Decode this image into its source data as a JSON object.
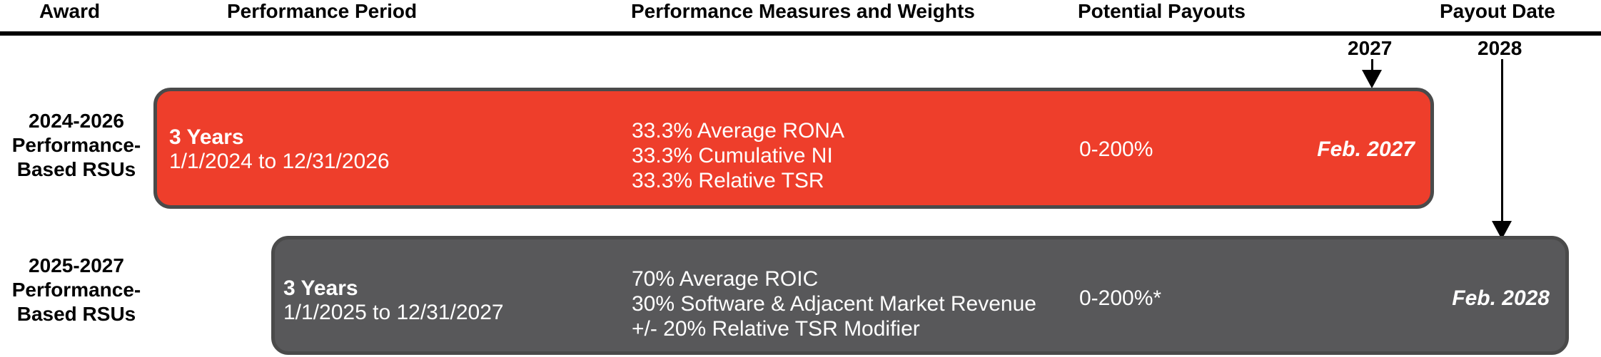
{
  "header": {
    "award": "Award",
    "performance_period": "Performance Period",
    "measures": "Performance Measures and Weights",
    "payouts": "Potential Payouts",
    "payout_date": "Payout Date"
  },
  "markers": [
    {
      "year": "2027"
    },
    {
      "year": "2028"
    }
  ],
  "rows": [
    {
      "award_lines": [
        "2024-2026",
        "Performance-",
        "Based RSUs"
      ],
      "duration": "3 Years",
      "dates": "1/1/2024 to 12/31/2026",
      "measures": [
        "33.3% Average RONA",
        "33.3% Cumulative NI",
        "33.3% Relative TSR"
      ],
      "payout": "0-200%",
      "payout_date": "Feb. 2027",
      "color": "#ee3e2b"
    },
    {
      "award_lines": [
        "2025-2027",
        "Performance-",
        "Based RSUs"
      ],
      "duration": "3 Years",
      "dates": "1/1/2025 to 12/31/2027",
      "measures": [
        "70% Average ROIC",
        "30% Software & Adjacent Market Revenue",
        "+/- 20% Relative TSR Modifier"
      ],
      "payout": "0-200%*",
      "payout_date": "Feb. 2028",
      "color": "#58585a"
    }
  ]
}
